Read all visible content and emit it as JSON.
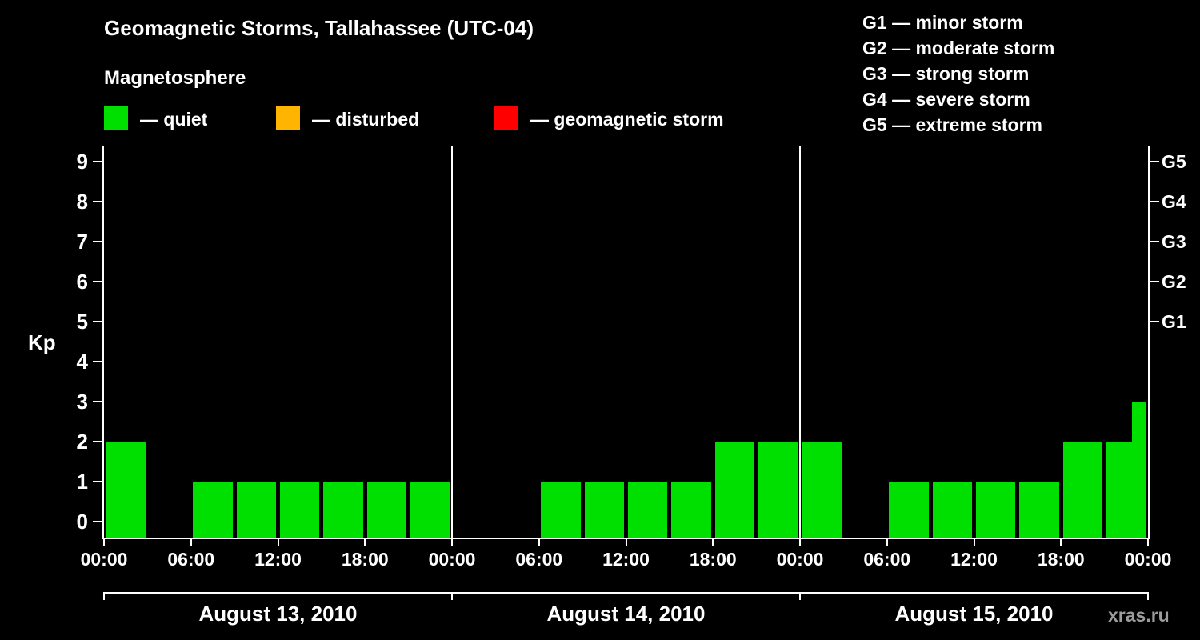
{
  "header": {
    "title": "Geomagnetic Storms, Tallahassee (UTC-04)",
    "subtitle": "Magnetosphere"
  },
  "legend": {
    "items": [
      {
        "name": "quiet",
        "label": "— quiet",
        "color": "#00e000"
      },
      {
        "name": "disturbed",
        "label": "— disturbed",
        "color": "#ffb400"
      },
      {
        "name": "geomagnetic-storm",
        "label": "— geomagnetic storm",
        "color": "#ff0000"
      }
    ]
  },
  "storm_scale": {
    "items": [
      {
        "label": "G1 — minor storm"
      },
      {
        "label": "G2 — moderate storm"
      },
      {
        "label": "G3 — strong storm"
      },
      {
        "label": "G4 — severe storm"
      },
      {
        "label": "G5 — extreme storm"
      }
    ]
  },
  "watermark": "xras.ru",
  "chart_data": {
    "type": "bar",
    "title": "Geomagnetic Storms, Tallahassee (UTC-04)",
    "ylabel": "Kp",
    "ylim": [
      -0.4,
      9.4
    ],
    "y_ticks": [
      0,
      1,
      2,
      3,
      4,
      5,
      6,
      7,
      8,
      9
    ],
    "right_ticks": [
      {
        "value": 5,
        "label": "G1"
      },
      {
        "value": 6,
        "label": "G2"
      },
      {
        "value": 7,
        "label": "G3"
      },
      {
        "value": 8,
        "label": "G4"
      },
      {
        "value": 9,
        "label": "G5"
      }
    ],
    "interval_hours": 3,
    "time_tick_labels": [
      "00:00",
      "06:00",
      "12:00",
      "18:00"
    ],
    "end_tick_label": "00:00",
    "bar_color": "#00e000",
    "grid": true,
    "legend_position": "top-left",
    "days": [
      {
        "date": "August 13, 2010",
        "values": [
          2,
          0,
          1,
          1,
          1,
          1,
          1,
          1
        ]
      },
      {
        "date": "August 14, 2010",
        "values": [
          0,
          0,
          1,
          1,
          1,
          1,
          2,
          2
        ]
      },
      {
        "date": "August 15, 2010",
        "values": [
          2,
          0,
          1,
          1,
          1,
          1,
          2,
          2
        ]
      }
    ],
    "partial_next": {
      "value": 3
    }
  }
}
